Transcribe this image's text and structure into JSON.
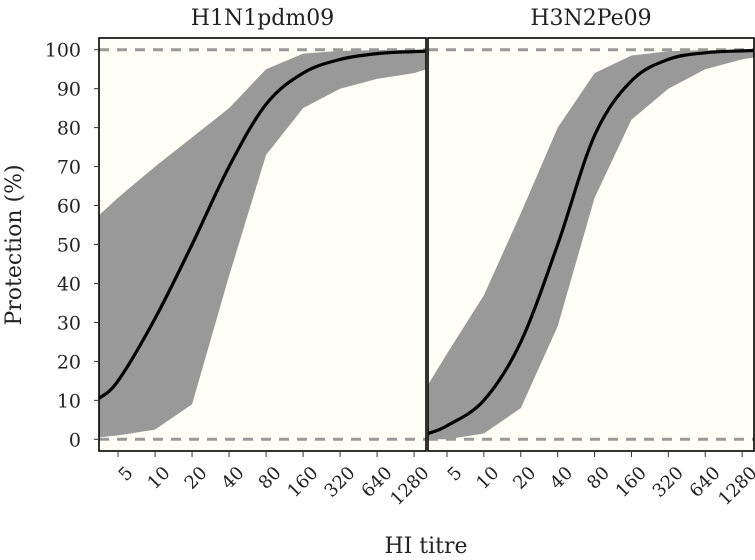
{
  "chart_data": {
    "type": "line",
    "ylabel": "Protection (%)",
    "xlabel": "HI titre",
    "yticks": [
      0,
      10,
      20,
      30,
      40,
      50,
      60,
      70,
      80,
      90,
      100
    ],
    "ylim": [
      -3,
      103
    ],
    "xticks": [
      5,
      10,
      20,
      40,
      80,
      160,
      320,
      640,
      1280
    ],
    "xlim": [
      3.5,
      1600
    ],
    "x_scale": "log2",
    "reference_lines": [
      0,
      100
    ],
    "colors": {
      "line": "#000000",
      "band": "#999999",
      "panel_bg": "#fffff8",
      "ref_line": "#999999"
    },
    "panels": [
      {
        "title": "H1N1pdm09",
        "x": [
          3.5,
          5,
          10,
          20,
          40,
          80,
          160,
          320,
          640,
          1280,
          1600
        ],
        "mean": [
          10.5,
          15,
          31,
          50,
          70,
          86,
          94,
          97.5,
          99,
          99.5,
          99.6
        ],
        "lower": [
          0.5,
          1,
          2.5,
          9,
          42,
          73,
          85,
          90,
          92.5,
          94,
          95
        ],
        "upper": [
          57.5,
          62,
          70,
          77.5,
          85,
          95,
          99,
          99.7,
          99.9,
          100,
          100
        ]
      },
      {
        "title": "H3N2Pe09",
        "x": [
          3.5,
          5,
          10,
          20,
          40,
          80,
          160,
          320,
          640,
          1280,
          1600
        ],
        "mean": [
          1.5,
          3.5,
          10,
          25,
          50,
          78,
          92,
          97.5,
          99.2,
          99.7,
          99.8
        ],
        "lower": [
          0,
          0,
          1.5,
          8,
          29,
          62,
          82,
          90,
          95,
          97.5,
          98
        ],
        "upper": [
          14,
          22,
          37,
          58,
          80,
          94,
          98.5,
          99.6,
          99.9,
          100,
          100
        ]
      }
    ]
  }
}
